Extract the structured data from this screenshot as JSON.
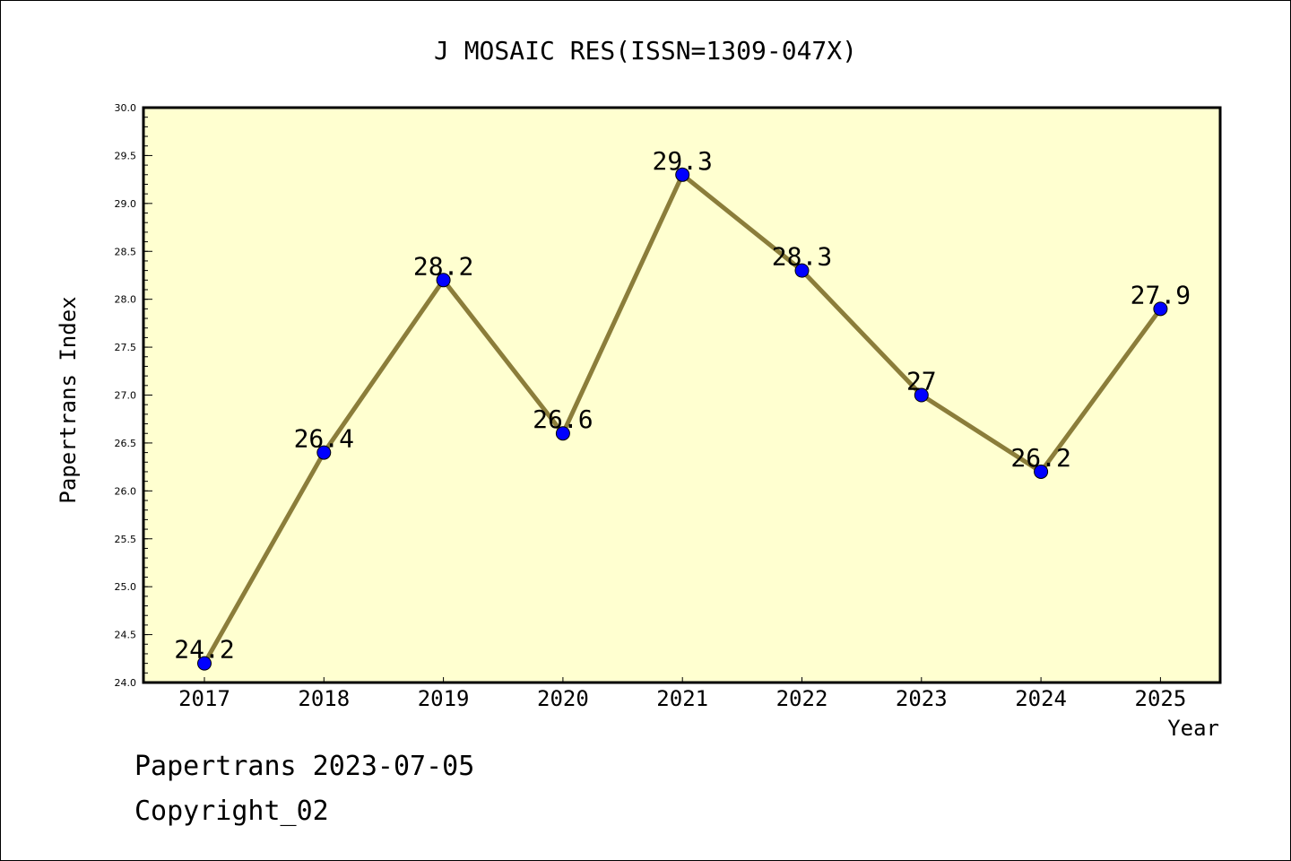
{
  "chart_data": {
    "type": "line",
    "title": "J MOSAIC RES(ISSN=1309-047X)",
    "xlabel": "Year",
    "ylabel": "Papertrans Index",
    "categories": [
      "2017",
      "2018",
      "2019",
      "2020",
      "2021",
      "2022",
      "2023",
      "2024",
      "2025"
    ],
    "values": [
      24.2,
      26.4,
      28.2,
      26.6,
      29.3,
      28.3,
      27.0,
      26.2,
      27.9
    ],
    "data_labels": [
      "24.2",
      "26.4",
      "28.2",
      "26.6",
      "29.3",
      "28.3",
      "27",
      "26.2",
      "27.9"
    ],
    "ylim": [
      24.0,
      30.0
    ],
    "yticks": [
      "24.0",
      "24.5",
      "25.0",
      "25.5",
      "26.0",
      "26.5",
      "27.0",
      "27.5",
      "28.0",
      "28.5",
      "29.0",
      "29.5",
      "30.0"
    ],
    "grid": false,
    "colors": {
      "plot_bg": "#ffffd0",
      "line": "#8b7d3a",
      "marker": "#0000ff"
    }
  },
  "footer": {
    "line1": "Papertrans 2023-07-05",
    "line2": "Copyright_02"
  }
}
